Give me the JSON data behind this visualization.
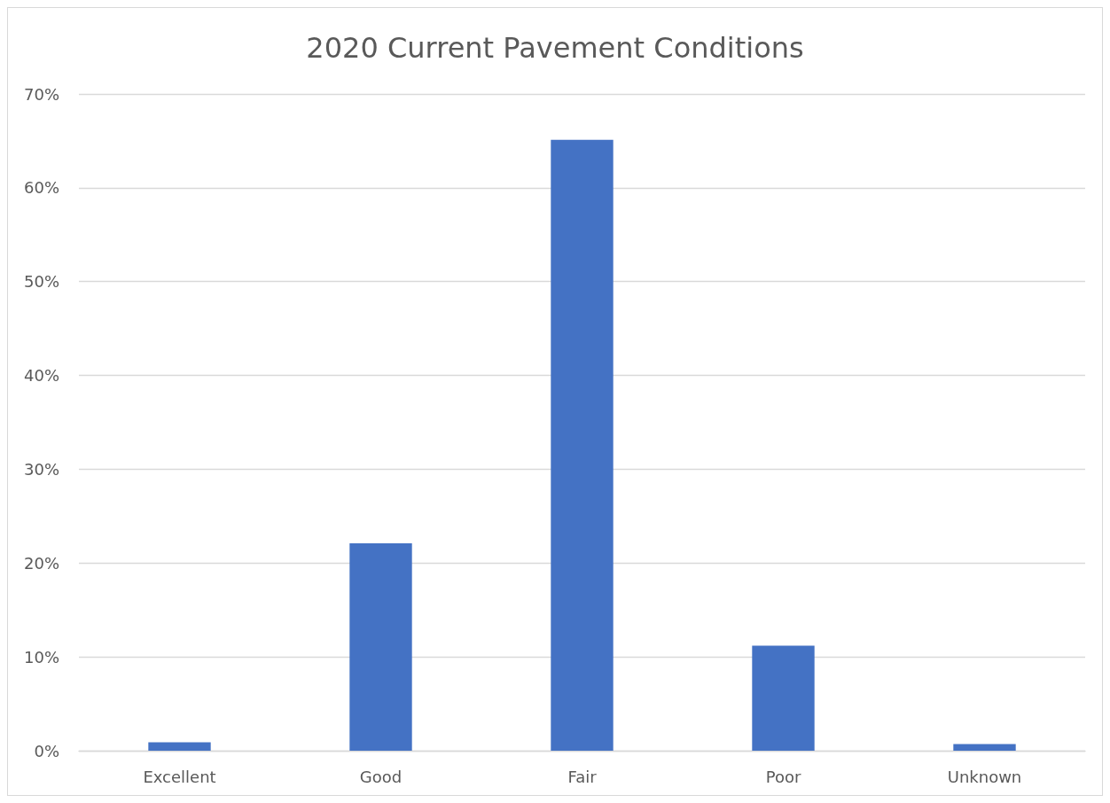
{
  "chart_data": {
    "type": "bar",
    "title": "2020 Current Pavement Conditions",
    "categories": [
      "Excellent",
      "Good",
      "Fair",
      "Poor",
      "Unknown"
    ],
    "values": [
      0.9,
      22.1,
      65.1,
      11.2,
      0.7
    ],
    "color": "#4472c4",
    "ylim": [
      0,
      70
    ],
    "yticks": [
      {
        "value": 0,
        "label": "0%"
      },
      {
        "value": 10,
        "label": "10%"
      },
      {
        "value": 20,
        "label": "20%"
      },
      {
        "value": 30,
        "label": "30%"
      },
      {
        "value": 40,
        "label": "40%"
      },
      {
        "value": 50,
        "label": "50%"
      },
      {
        "value": 60,
        "label": "60%"
      },
      {
        "value": 70,
        "label": "70%"
      }
    ],
    "grid": "y"
  }
}
